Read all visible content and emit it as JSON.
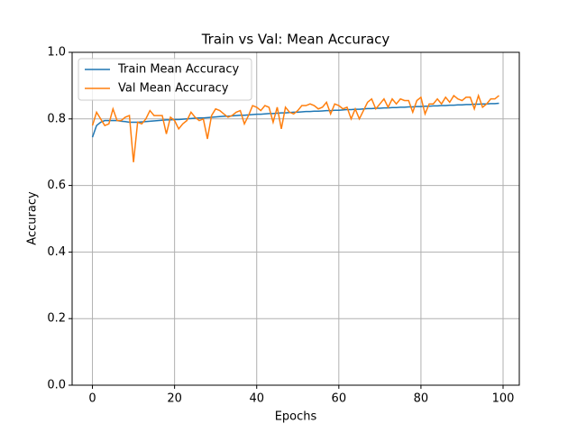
{
  "chart_data": {
    "type": "line",
    "title": "Train vs Val: Mean Accuracy",
    "x_label": "Epochs",
    "y_label": "Accuracy",
    "x": [
      0,
      1,
      2,
      3,
      4,
      5,
      6,
      7,
      8,
      9,
      10,
      11,
      12,
      13,
      14,
      15,
      16,
      17,
      18,
      19,
      20,
      21,
      22,
      23,
      24,
      25,
      26,
      27,
      28,
      29,
      30,
      31,
      32,
      33,
      34,
      35,
      36,
      37,
      38,
      39,
      40,
      41,
      42,
      43,
      44,
      45,
      46,
      47,
      48,
      49,
      50,
      51,
      52,
      53,
      54,
      55,
      56,
      57,
      58,
      59,
      60,
      61,
      62,
      63,
      64,
      65,
      66,
      67,
      68,
      69,
      70,
      71,
      72,
      73,
      74,
      75,
      76,
      77,
      78,
      79,
      80,
      81,
      82,
      83,
      84,
      85,
      86,
      87,
      88,
      89,
      90,
      91,
      92,
      93,
      94,
      95,
      96,
      97,
      98,
      99
    ],
    "series": [
      {
        "name": "Train Mean Accuracy",
        "color": "#1f77b4",
        "values": [
          0.745,
          0.78,
          0.79,
          0.795,
          0.795,
          0.795,
          0.795,
          0.793,
          0.792,
          0.79,
          0.79,
          0.79,
          0.791,
          0.792,
          0.793,
          0.794,
          0.795,
          0.796,
          0.797,
          0.797,
          0.798,
          0.798,
          0.799,
          0.8,
          0.801,
          0.802,
          0.803,
          0.803,
          0.804,
          0.805,
          0.806,
          0.807,
          0.808,
          0.808,
          0.809,
          0.81,
          0.811,
          0.811,
          0.812,
          0.813,
          0.814,
          0.814,
          0.815,
          0.816,
          0.816,
          0.817,
          0.818,
          0.818,
          0.819,
          0.82,
          0.82,
          0.821,
          0.822,
          0.822,
          0.823,
          0.823,
          0.824,
          0.825,
          0.825,
          0.826,
          0.826,
          0.827,
          0.828,
          0.828,
          0.829,
          0.829,
          0.83,
          0.831,
          0.831,
          0.832,
          0.832,
          0.833,
          0.833,
          0.834,
          0.834,
          0.835,
          0.835,
          0.836,
          0.836,
          0.837,
          0.837,
          0.838,
          0.838,
          0.839,
          0.839,
          0.84,
          0.84,
          0.841,
          0.841,
          0.842,
          0.842,
          0.843,
          0.843,
          0.844,
          0.844,
          0.845,
          0.845,
          0.846,
          0.846,
          0.847
        ]
      },
      {
        "name": "Val Mean Accuracy",
        "color": "#ff7f0e",
        "values": [
          0.78,
          0.82,
          0.8,
          0.78,
          0.785,
          0.83,
          0.795,
          0.795,
          0.805,
          0.81,
          0.67,
          0.79,
          0.785,
          0.8,
          0.825,
          0.81,
          0.81,
          0.81,
          0.755,
          0.805,
          0.795,
          0.77,
          0.785,
          0.795,
          0.82,
          0.805,
          0.795,
          0.8,
          0.74,
          0.81,
          0.83,
          0.825,
          0.815,
          0.805,
          0.81,
          0.82,
          0.825,
          0.785,
          0.81,
          0.84,
          0.835,
          0.825,
          0.84,
          0.835,
          0.79,
          0.835,
          0.77,
          0.835,
          0.82,
          0.815,
          0.825,
          0.84,
          0.84,
          0.845,
          0.84,
          0.83,
          0.835,
          0.85,
          0.815,
          0.845,
          0.84,
          0.83,
          0.835,
          0.8,
          0.83,
          0.8,
          0.825,
          0.85,
          0.86,
          0.83,
          0.845,
          0.86,
          0.835,
          0.86,
          0.845,
          0.86,
          0.855,
          0.855,
          0.82,
          0.855,
          0.865,
          0.815,
          0.845,
          0.845,
          0.86,
          0.845,
          0.865,
          0.85,
          0.87,
          0.86,
          0.855,
          0.865,
          0.865,
          0.83,
          0.87,
          0.835,
          0.845,
          0.86,
          0.86,
          0.87
        ]
      }
    ],
    "xlim": [
      -4.95,
      103.95
    ],
    "xticks": [
      0,
      20,
      40,
      60,
      80,
      100
    ],
    "ylim": [
      0,
      1
    ],
    "yticks": [
      {
        "value": 0,
        "label": "0.0"
      },
      0.2,
      0.4,
      0.6,
      0.8,
      {
        "value": 1,
        "label": "1.0"
      }
    ],
    "grid": true,
    "legend": "upper left"
  }
}
